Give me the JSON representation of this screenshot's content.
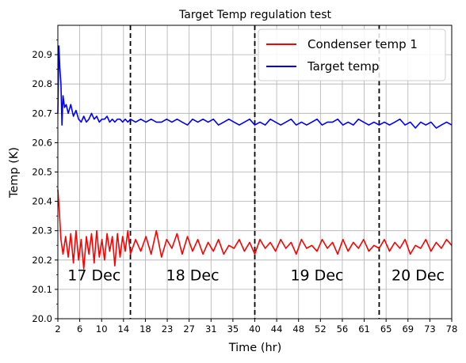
{
  "chart_data": {
    "type": "line",
    "title": "Target Temp regulation test",
    "xlabel": "Time (hr)",
    "ylabel": "Temp (K)",
    "xlim": [
      2,
      78
    ],
    "ylim": [
      20.0,
      21.0
    ],
    "grid": true,
    "legend_position": "top-right",
    "x_ticks": [
      "2",
      "6",
      "10",
      "14",
      "18",
      "23",
      "27",
      "31",
      "35",
      "40",
      "44",
      "48",
      "52",
      "56",
      "61",
      "65",
      "69",
      "73",
      "78"
    ],
    "y_ticks": [
      "20.0",
      "20.1",
      "20.2",
      "20.3",
      "20.4",
      "20.5",
      "20.6",
      "20.7",
      "20.8",
      "20.9"
    ],
    "day_boundaries_hr": [
      16,
      40,
      64
    ],
    "annotations": [
      {
        "text": "17 Dec",
        "x": 9,
        "y": 20.15
      },
      {
        "text": "18 Dec",
        "x": 28,
        "y": 20.15
      },
      {
        "text": "19 Dec",
        "x": 52,
        "y": 20.15
      },
      {
        "text": "20 Dec",
        "x": 71.5,
        "y": 20.15
      }
    ],
    "series": [
      {
        "name": "Condenser temp 1",
        "color": "#ff0000",
        "x": [
          2.0,
          2.3,
          2.6,
          3.0,
          3.5,
          4.0,
          4.5,
          5.0,
          5.5,
          6.0,
          6.5,
          7.0,
          7.5,
          8.0,
          8.5,
          9.0,
          9.5,
          10.0,
          10.5,
          11.0,
          11.5,
          12.0,
          12.5,
          13.0,
          13.5,
          14.0,
          14.5,
          15.0,
          15.5,
          16.0,
          17,
          18,
          19,
          20,
          21,
          22,
          23,
          24,
          25,
          26,
          27,
          28,
          29,
          30,
          31,
          32,
          33,
          34,
          35,
          36,
          37,
          38,
          39,
          40,
          41,
          42,
          43,
          44,
          45,
          46,
          47,
          48,
          49,
          50,
          51,
          52,
          53,
          54,
          55,
          56,
          57,
          58,
          59,
          60,
          61,
          62,
          63,
          64,
          65,
          66,
          67,
          68,
          69,
          70,
          71,
          72,
          73,
          74,
          75,
          76,
          77,
          78
        ],
        "y": [
          20.44,
          20.36,
          20.27,
          20.22,
          20.28,
          20.21,
          20.29,
          20.19,
          20.3,
          20.2,
          20.27,
          20.17,
          20.28,
          20.22,
          20.29,
          20.19,
          20.3,
          20.21,
          20.27,
          20.2,
          20.29,
          20.23,
          20.28,
          20.18,
          20.29,
          20.21,
          20.28,
          20.23,
          20.3,
          20.22,
          20.27,
          20.23,
          20.28,
          20.22,
          20.3,
          20.21,
          20.27,
          20.24,
          20.29,
          20.22,
          20.28,
          20.23,
          20.27,
          20.22,
          20.26,
          20.23,
          20.27,
          20.22,
          20.25,
          20.24,
          20.27,
          20.23,
          20.26,
          20.22,
          20.27,
          20.24,
          20.26,
          20.23,
          20.27,
          20.24,
          20.26,
          20.22,
          20.27,
          20.24,
          20.25,
          20.23,
          20.27,
          20.24,
          20.26,
          20.22,
          20.27,
          20.23,
          20.26,
          20.24,
          20.27,
          20.23,
          20.25,
          20.24,
          20.27,
          20.23,
          20.26,
          20.24,
          20.27,
          20.22,
          20.25,
          20.24,
          20.27,
          20.23,
          20.26,
          20.24,
          20.27,
          20.25
        ]
      },
      {
        "name": "Target temp",
        "color": "#0000ff",
        "x": [
          2.0,
          2.2,
          2.4,
          2.6,
          2.8,
          3.0,
          3.3,
          3.6,
          4.0,
          4.5,
          5.0,
          5.5,
          6.0,
          6.5,
          7.0,
          7.5,
          8.0,
          8.5,
          9.0,
          9.5,
          10.0,
          10.5,
          11.0,
          11.5,
          12.0,
          12.5,
          13.0,
          13.5,
          14.0,
          14.5,
          15.0,
          15.5,
          16.0,
          17,
          18,
          19,
          20,
          21,
          22,
          23,
          24,
          25,
          26,
          27,
          28,
          29,
          30,
          31,
          32,
          33,
          34,
          35,
          36,
          37,
          38,
          39,
          40,
          41,
          42,
          43,
          44,
          45,
          46,
          47,
          48,
          49,
          50,
          51,
          52,
          53,
          54,
          55,
          56,
          57,
          58,
          59,
          60,
          61,
          62,
          63,
          64,
          65,
          66,
          67,
          68,
          69,
          70,
          71,
          72,
          73,
          74,
          75,
          76,
          77,
          78
        ],
        "y": [
          20.7,
          20.93,
          20.85,
          20.8,
          20.66,
          20.76,
          20.72,
          20.73,
          20.7,
          20.73,
          20.69,
          20.71,
          20.68,
          20.67,
          20.69,
          20.67,
          20.68,
          20.7,
          20.68,
          20.69,
          20.67,
          20.68,
          20.68,
          20.69,
          20.67,
          20.68,
          20.67,
          20.68,
          20.68,
          20.67,
          20.68,
          20.67,
          20.68,
          20.67,
          20.68,
          20.67,
          20.68,
          20.67,
          20.67,
          20.68,
          20.67,
          20.68,
          20.67,
          20.66,
          20.68,
          20.67,
          20.68,
          20.67,
          20.68,
          20.66,
          20.67,
          20.68,
          20.67,
          20.66,
          20.67,
          20.68,
          20.66,
          20.67,
          20.66,
          20.68,
          20.67,
          20.66,
          20.67,
          20.68,
          20.66,
          20.67,
          20.66,
          20.67,
          20.68,
          20.66,
          20.67,
          20.67,
          20.68,
          20.66,
          20.67,
          20.66,
          20.68,
          20.67,
          20.66,
          20.67,
          20.66,
          20.67,
          20.66,
          20.67,
          20.68,
          20.66,
          20.67,
          20.65,
          20.67,
          20.66,
          20.67,
          20.65,
          20.66,
          20.67,
          20.66
        ]
      }
    ]
  }
}
